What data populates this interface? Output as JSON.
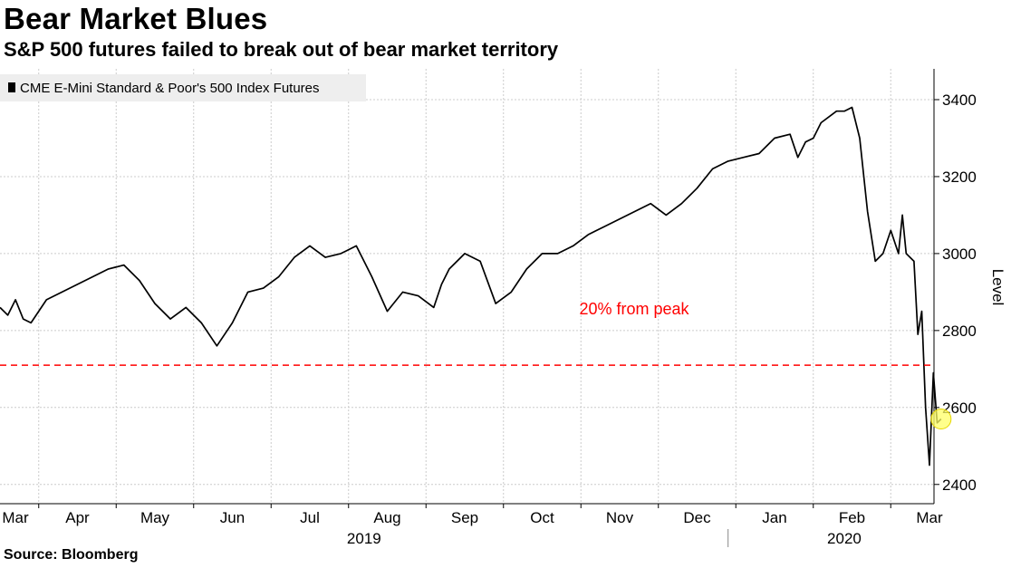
{
  "chart_data": {
    "type": "line",
    "title": "Bear Market Blues",
    "subtitle": "S&P 500 futures failed to break out of bear market territory",
    "source": "Source: Bloomberg",
    "ylabel": "Level",
    "ylim": [
      2350,
      3480
    ],
    "yticks": [
      2400,
      2600,
      2800,
      3000,
      3200,
      3400
    ],
    "grid": true,
    "legend": {
      "placement": "top-left",
      "series_color": "#000000"
    },
    "x_months": [
      "Mar",
      "Apr",
      "May",
      "Jun",
      "Jul",
      "Aug",
      "Sep",
      "Oct",
      "Nov",
      "Dec",
      "Jan",
      "Feb",
      "Mar"
    ],
    "x_years": [
      "2019",
      "2020"
    ],
    "series": [
      {
        "name": "CME E-Mini Standard & Poor's 500 Index Futures",
        "color": "#000000",
        "x": [
          0,
          0.1,
          0.2,
          0.3,
          0.4,
          0.6,
          0.8,
          1.0,
          1.2,
          1.4,
          1.6,
          1.8,
          2.0,
          2.2,
          2.4,
          2.6,
          2.8,
          3.0,
          3.2,
          3.4,
          3.6,
          3.8,
          4.0,
          4.2,
          4.4,
          4.6,
          4.8,
          5.0,
          5.2,
          5.4,
          5.6,
          5.7,
          5.8,
          6.0,
          6.2,
          6.4,
          6.6,
          6.8,
          7.0,
          7.2,
          7.4,
          7.6,
          7.8,
          8.0,
          8.2,
          8.4,
          8.6,
          8.8,
          9.0,
          9.2,
          9.4,
          9.6,
          9.8,
          10.0,
          10.2,
          10.3,
          10.4,
          10.5,
          10.6,
          10.8,
          10.9,
          11.0,
          11.1,
          11.2,
          11.3,
          11.4,
          11.5,
          11.6,
          11.65,
          11.7,
          11.8,
          11.85,
          11.9,
          11.95,
          12.0,
          12.05,
          12.1,
          12.15
        ],
        "values": [
          2860,
          2840,
          2880,
          2830,
          2820,
          2880,
          2900,
          2920,
          2940,
          2960,
          2970,
          2930,
          2870,
          2830,
          2860,
          2820,
          2760,
          2820,
          2900,
          2910,
          2940,
          2990,
          3020,
          2990,
          3000,
          3020,
          2940,
          2850,
          2900,
          2890,
          2860,
          2920,
          2960,
          3000,
          2980,
          2870,
          2900,
          2960,
          3000,
          3000,
          3020,
          3050,
          3070,
          3090,
          3110,
          3130,
          3100,
          3130,
          3170,
          3220,
          3240,
          3250,
          3260,
          3300,
          3310,
          3250,
          3290,
          3300,
          3340,
          3370,
          3370,
          3380,
          3300,
          3110,
          2980,
          3000,
          3060,
          3000,
          3100,
          3000,
          2980,
          2790,
          2850,
          2600,
          2450,
          2690,
          2560,
          2570
        ]
      }
    ],
    "annotations": [
      {
        "text": "20% from peak",
        "value": 2710,
        "color": "#ff0000"
      }
    ],
    "highlight_point": {
      "x": 12.15,
      "value": 2570,
      "color": "#ffff66"
    }
  }
}
